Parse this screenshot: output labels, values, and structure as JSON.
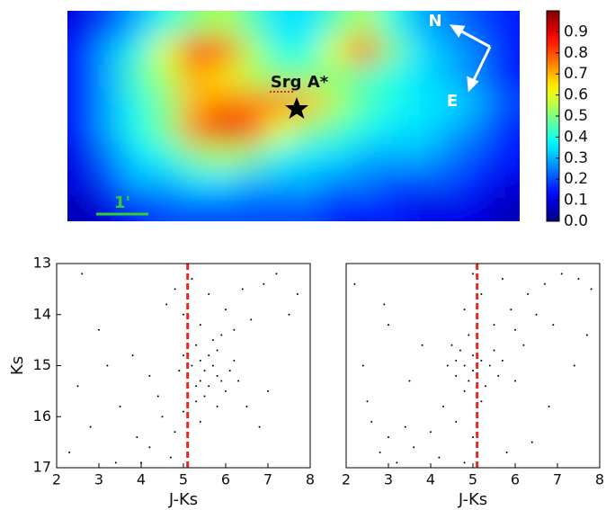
{
  "chart_data": [
    {
      "type": "heatmap",
      "cmap": "jet",
      "z": [
        [
          0.1,
          0.2,
          0.3,
          0.4,
          0.5,
          0.55,
          0.45,
          0.35,
          0.35,
          0.45,
          0.55,
          0.4,
          0.3,
          0.25,
          0.2,
          0.15
        ],
        [
          0.15,
          0.3,
          0.4,
          0.6,
          0.85,
          0.8,
          0.55,
          0.4,
          0.4,
          0.6,
          0.8,
          0.5,
          0.35,
          0.3,
          0.25,
          0.15
        ],
        [
          0.15,
          0.3,
          0.45,
          0.55,
          0.7,
          0.65,
          0.55,
          0.5,
          0.5,
          0.5,
          0.45,
          0.4,
          0.35,
          0.3,
          0.25,
          0.15
        ],
        [
          0.15,
          0.3,
          0.4,
          0.5,
          0.7,
          0.75,
          0.75,
          0.75,
          0.7,
          0.55,
          0.45,
          0.4,
          0.35,
          0.35,
          0.3,
          0.2
        ],
        [
          0.15,
          0.3,
          0.4,
          0.5,
          0.75,
          0.9,
          0.8,
          0.6,
          0.5,
          0.45,
          0.4,
          0.35,
          0.35,
          0.3,
          0.25,
          0.15
        ],
        [
          0.1,
          0.25,
          0.35,
          0.4,
          0.5,
          0.55,
          0.5,
          0.4,
          0.35,
          0.35,
          0.3,
          0.3,
          0.3,
          0.25,
          0.2,
          0.15
        ],
        [
          0.1,
          0.2,
          0.3,
          0.3,
          0.35,
          0.35,
          0.3,
          0.3,
          0.3,
          0.25,
          0.25,
          0.2,
          0.2,
          0.2,
          0.15,
          0.1
        ],
        [
          0.05,
          0.1,
          0.15,
          0.2,
          0.2,
          0.2,
          0.2,
          0.2,
          0.2,
          0.15,
          0.15,
          0.15,
          0.1,
          0.1,
          0.1,
          0.05
        ]
      ],
      "clim": [
        0,
        1
      ],
      "cticks": [
        {
          "value": 0,
          "label": "0.0"
        },
        0.1,
        0.2,
        0.3,
        0.4,
        0.5,
        0.6,
        0.7,
        0.8,
        0.9
      ],
      "labels": {
        "north": "N",
        "east": "E",
        "target": "Srg A*",
        "scale": "1'"
      }
    },
    {
      "type": "scatter",
      "color": "#000000",
      "reference_line": 5.1,
      "reference_color": "#e8261e",
      "x": [
        5.2,
        5.5,
        5.8,
        5.4,
        5.9,
        6.1,
        5.3,
        5.6,
        6.0,
        5.7,
        5.1,
        5.5,
        6.3,
        4.9,
        5.4,
        5.8,
        6.2,
        5.6,
        5.0,
        5.3,
        5.2,
        5.6,
        6.0,
        6.4,
        5.4,
        5.9,
        6.6,
        6.9,
        5.0,
        4.8,
        5.7,
        6.2,
        7.2,
        4.6,
        5.3,
        4.5,
        4.8,
        4.2,
        5.0,
        4.0,
        4.4,
        5.4,
        3.9,
        4.7,
        5.8,
        2.5,
        2.8,
        3.2,
        3.5,
        2.3,
        3.0,
        3.8,
        7.0,
        7.5,
        6.8,
        2.6,
        3.4,
        4.2,
        6.5,
        7.7
      ],
      "y": [
        15.0,
        15.1,
        15.2,
        14.9,
        15.3,
        15.1,
        15.4,
        14.8,
        15.5,
        15.0,
        15.2,
        15.6,
        15.3,
        15.1,
        15.3,
        14.7,
        14.9,
        15.4,
        14.8,
        15.7,
        13.3,
        13.6,
        13.9,
        13.5,
        14.2,
        14.4,
        14.1,
        13.4,
        14.0,
        13.5,
        14.5,
        14.3,
        13.2,
        13.8,
        14.6,
        16.0,
        16.3,
        16.6,
        15.9,
        16.9,
        15.6,
        16.1,
        16.4,
        16.8,
        15.8,
        15.4,
        16.2,
        15.0,
        15.8,
        16.7,
        14.3,
        14.8,
        15.5,
        14.0,
        16.2,
        13.2,
        16.9,
        15.2,
        15.8,
        13.6
      ],
      "xlim": [
        2,
        8
      ],
      "ylim": [
        17,
        13
      ],
      "xticks": [
        2,
        3,
        4,
        5,
        6,
        7,
        8
      ],
      "yticks": [
        13,
        14,
        15,
        16,
        17
      ],
      "xlabel": "J-Ks",
      "ylabel": "Ks"
    },
    {
      "type": "scatter",
      "color": "#000000",
      "reference_line": 5.1,
      "reference_color": "#e8261e",
      "x": [
        4.6,
        4.8,
        5.0,
        4.7,
        5.2,
        4.9,
        5.4,
        4.5,
        5.1,
        5.6,
        4.8,
        5.3,
        4.4,
        5.0,
        5.7,
        4.6,
        5.2,
        4.9,
        5.5,
        6.0,
        5.5,
        5.9,
        6.3,
        6.7,
        7.1,
        7.5,
        6.0,
        6.5,
        5.2,
        5.0,
        4.8,
        7.8,
        6.9,
        5.7,
        6.2,
        4.3,
        4.0,
        3.6,
        3.2,
        3.0,
        2.8,
        4.6,
        4.2,
        5.0,
        3.4,
        2.6,
        4.8,
        2.4,
        3.0,
        2.2,
        3.5,
        6.8,
        7.4,
        2.5,
        3.8,
        6.4,
        7.7,
        2.9,
        5.8
      ],
      "y": [
        14.9,
        15.0,
        15.1,
        14.7,
        14.9,
        15.3,
        15.0,
        14.6,
        14.6,
        15.2,
        15.5,
        15.4,
        15.0,
        14.8,
        14.9,
        15.2,
        15.7,
        14.4,
        14.7,
        15.3,
        14.2,
        13.9,
        13.6,
        13.4,
        13.2,
        13.3,
        14.3,
        14.0,
        13.6,
        13.2,
        13.9,
        13.5,
        14.2,
        13.3,
        14.6,
        15.8,
        16.3,
        16.6,
        16.9,
        16.4,
        16.7,
        16.1,
        16.8,
        16.4,
        16.2,
        16.1,
        16.9,
        15.0,
        14.2,
        13.4,
        15.3,
        15.8,
        15.0,
        15.7,
        14.6,
        16.5,
        14.4,
        13.8,
        16.7
      ],
      "xlim": [
        2,
        8
      ],
      "ylim": [
        17,
        13
      ],
      "xticks": [
        2,
        3,
        4,
        5,
        6,
        7,
        8
      ],
      "xlabel": "J-Ks"
    }
  ]
}
